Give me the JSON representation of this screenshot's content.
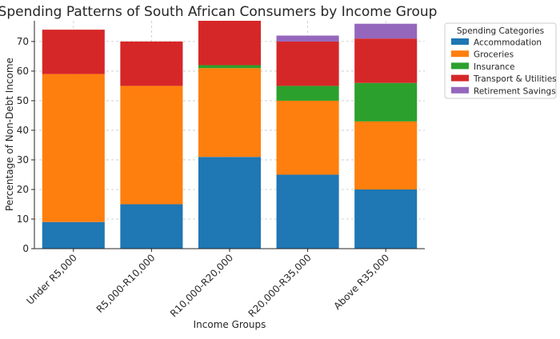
{
  "chart_data": {
    "type": "bar",
    "stacked": true,
    "title": "Spending Patterns of South African Consumers by Income Group",
    "xlabel": "Income Groups",
    "ylabel": "Percentage of Non-Debt Income",
    "ylim": [
      0,
      77
    ],
    "yticks": [
      0,
      10,
      20,
      30,
      40,
      50,
      60,
      70
    ],
    "grid": true,
    "legend": {
      "title": "Spending Categories",
      "position": "outside-right"
    },
    "categories": [
      "Under R5,000",
      "R5,000-R10,000",
      "R10,000-R20,000",
      "R20,000-R35,000",
      "Above R35,000"
    ],
    "series": [
      {
        "name": "Accommodation",
        "color": "#1f77b4",
        "values": [
          9,
          15,
          31,
          25,
          20
        ]
      },
      {
        "name": "Groceries",
        "color": "#ff7f0e",
        "values": [
          50,
          40,
          30,
          25,
          23
        ]
      },
      {
        "name": "Insurance",
        "color": "#2ca02c",
        "values": [
          0,
          0,
          1,
          5,
          13
        ]
      },
      {
        "name": "Transport & Utilities",
        "color": "#d62728",
        "values": [
          15,
          15,
          15,
          15,
          15
        ]
      },
      {
        "name": "Retirement Savings",
        "color": "#9467bd",
        "values": [
          0,
          0,
          0,
          2,
          5
        ]
      }
    ]
  }
}
